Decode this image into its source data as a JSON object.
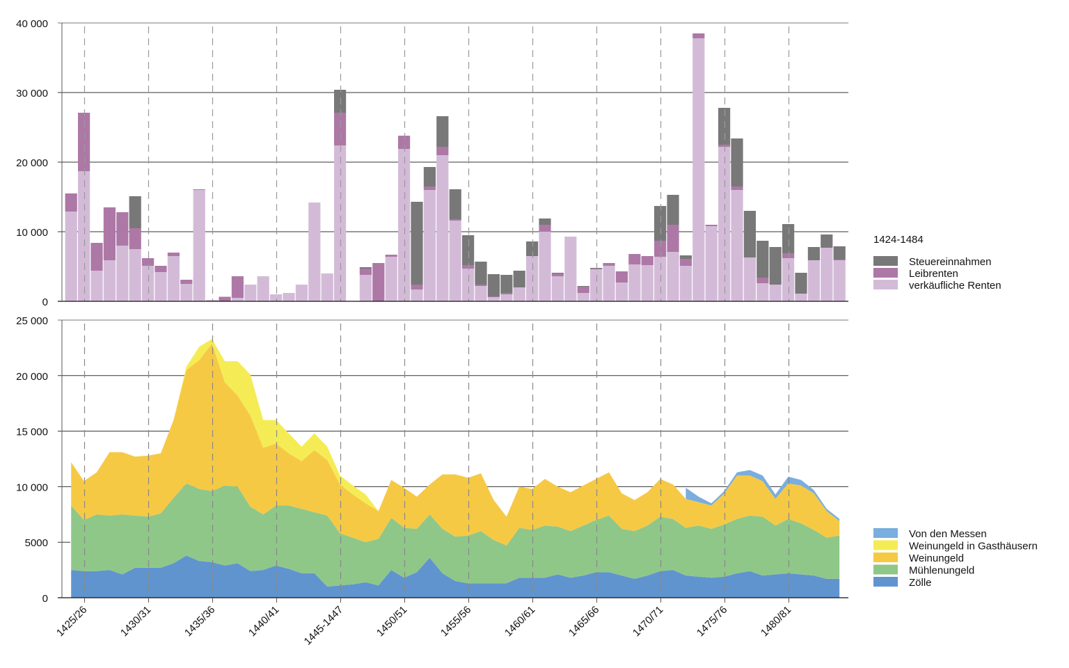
{
  "chart_data": [
    {
      "type": "bar",
      "stacked": true,
      "legend_title": "1424-1484",
      "legend_position": "right",
      "grid": true,
      "ylim": [
        0,
        40000
      ],
      "yticks": [
        0,
        10000,
        20000,
        30000,
        40000
      ],
      "ytick_labels": [
        "0",
        "10 000",
        "20 000",
        "30 000",
        "40 000"
      ],
      "x_start_year": 1424,
      "series": [
        {
          "name": "verkäufliche Renten",
          "color": "#d3bbd8",
          "values": [
            12900,
            18700,
            4400,
            5900,
            8000,
            7500,
            5100,
            4200,
            6500,
            2500,
            16000,
            200,
            50,
            500,
            2400,
            3600,
            1000,
            1200,
            2400,
            14200,
            4000,
            22400,
            0,
            3800,
            0,
            6400,
            21900,
            1700,
            16000,
            21000,
            11600,
            4700,
            2200,
            600,
            1000,
            2000,
            6500,
            10000,
            3600,
            9300,
            1200,
            4600,
            5100,
            2700,
            5300,
            5200,
            6400,
            7100,
            5100,
            37800,
            10800,
            22200,
            16000,
            6300,
            2600,
            2400,
            6200,
            1100,
            5900,
            7700,
            5900
          ]
        },
        {
          "name": "Leibrenten",
          "color": "#ad78a6",
          "values": [
            2600,
            8400,
            4000,
            7600,
            4800,
            3000,
            1100,
            900,
            500,
            600,
            100,
            0,
            600,
            3100,
            0,
            0,
            0,
            0,
            0,
            0,
            0,
            4700,
            0,
            900,
            5500,
            300,
            1900,
            700,
            500,
            1200,
            200,
            500,
            200,
            100,
            200,
            0,
            0,
            1000,
            400,
            0,
            900,
            100,
            400,
            1600,
            1500,
            1300,
            2300,
            3900,
            1000,
            700,
            200,
            300,
            500,
            0,
            800,
            0,
            700,
            0,
            0,
            0,
            100
          ]
        },
        {
          "name": "Steuereinnahmen",
          "color": "#787878",
          "values": [
            0,
            0,
            0,
            0,
            0,
            4600,
            0,
            0,
            0,
            0,
            0,
            0,
            0,
            0,
            0,
            0,
            0,
            0,
            0,
            0,
            0,
            3300,
            0,
            200,
            0,
            0,
            0,
            11900,
            2800,
            4400,
            4300,
            4300,
            3300,
            3200,
            2600,
            2400,
            2100,
            900,
            100,
            0,
            100,
            100,
            0,
            0,
            0,
            0,
            5000,
            4300,
            500,
            0,
            0,
            5300,
            6900,
            6700,
            5300,
            5400,
            4200,
            3000,
            1900,
            1900,
            1900
          ]
        }
      ]
    },
    {
      "type": "area",
      "stacked": true,
      "legend_position": "right",
      "grid": true,
      "ylim": [
        0,
        25000
      ],
      "yticks": [
        0,
        5000,
        10000,
        15000,
        20000,
        25000
      ],
      "ytick_labels": [
        "0",
        "5000",
        "10 000",
        "15 000",
        "20 000",
        "25 000"
      ],
      "xtick_labels": [
        "1425/26",
        "1430/31",
        "1435/36",
        "1440/41",
        "1445-1447",
        "1450/51",
        "1455/56",
        "1460/61",
        "1465/66",
        "1470/71",
        "1475/76",
        "1480/81"
      ],
      "series": [
        {
          "name": "Zölle",
          "color": "#6094cf",
          "values": [
            2500,
            2400,
            2400,
            2500,
            2100,
            2700,
            2700,
            2700,
            3100,
            3800,
            3300,
            3200,
            2900,
            3100,
            2400,
            2500,
            2900,
            2600,
            2200,
            2200,
            1000,
            1100,
            1200,
            1400,
            1100,
            2500,
            1800,
            2300,
            3600,
            2200,
            1500,
            1300,
            1300,
            1300,
            1300,
            1800,
            1800,
            1800,
            2100,
            1800,
            2000,
            2300,
            2300,
            2000,
            1700,
            2000,
            2400,
            2500,
            2000,
            1900,
            1800,
            1900,
            2200,
            2400,
            2000,
            2100,
            2200,
            2100,
            2000,
            1700,
            1700
          ]
        },
        {
          "name": "Mühlenungeld",
          "color": "#8fc789",
          "values": [
            5800,
            4600,
            5100,
            4900,
            5400,
            4700,
            4600,
            4900,
            5900,
            6500,
            6500,
            6400,
            7200,
            6900,
            5800,
            5000,
            5400,
            5700,
            5800,
            5500,
            6400,
            4700,
            4200,
            3600,
            4200,
            4700,
            4500,
            3900,
            3900,
            4000,
            4000,
            4300,
            4700,
            3900,
            3400,
            4500,
            4300,
            4700,
            4300,
            4200,
            4500,
            4700,
            5100,
            4200,
            4300,
            4500,
            4900,
            4600,
            4300,
            4600,
            4400,
            4700,
            4900,
            5000,
            5300,
            4400,
            4900,
            4600,
            4100,
            3700,
            3900
          ]
        },
        {
          "name": "Weinungeld",
          "color": "#f6c945",
          "values": [
            3900,
            3500,
            3800,
            5700,
            5600,
            5300,
            5500,
            5400,
            7000,
            10200,
            11600,
            13300,
            9300,
            8200,
            8200,
            6000,
            5600,
            4700,
            4300,
            5600,
            5000,
            4400,
            3900,
            3500,
            2500,
            3400,
            3600,
            2900,
            2700,
            4900,
            5600,
            5200,
            5200,
            3600,
            2600,
            3700,
            3700,
            4200,
            3600,
            3500,
            3600,
            3700,
            3900,
            3200,
            2800,
            3000,
            3400,
            3100,
            2600,
            2100,
            2100,
            2800,
            3900,
            3600,
            3200,
            2400,
            3200,
            3400,
            3300,
            2400,
            1300
          ]
        },
        {
          "name": "Weinungeld in Gasthäusern",
          "color": "#f5ec55",
          "values": [
            0,
            0,
            0,
            0,
            0,
            0,
            0,
            0,
            0,
            300,
            1200,
            400,
            1900,
            3100,
            3700,
            2500,
            2100,
            1800,
            1300,
            1500,
            1200,
            800,
            800,
            800,
            0,
            0,
            0,
            0,
            0,
            0,
            0,
            0,
            0,
            0,
            0,
            0,
            0,
            0,
            0,
            0,
            0,
            0,
            0,
            0,
            0,
            0,
            0,
            0,
            0,
            0,
            0,
            0,
            0,
            0,
            0,
            0,
            0,
            0,
            0,
            0,
            0
          ]
        },
        {
          "name": "Von den Messen",
          "color": "#79aede",
          "values": [
            0,
            0,
            0,
            0,
            0,
            0,
            0,
            0,
            0,
            0,
            0,
            0,
            0,
            0,
            0,
            0,
            0,
            0,
            0,
            0,
            0,
            0,
            0,
            0,
            0,
            0,
            0,
            0,
            0,
            0,
            0,
            0,
            0,
            0,
            0,
            0,
            0,
            0,
            0,
            0,
            0,
            0,
            0,
            0,
            0,
            0,
            0,
            0,
            1000,
            500,
            200,
            200,
            300,
            500,
            500,
            400,
            600,
            500,
            300,
            200,
            200
          ]
        }
      ]
    }
  ],
  "legend_bottom_order": [
    "Von den Messen",
    "Weinungeld in Gasthäusern",
    "Weinungeld",
    "Mühlenungeld",
    "Zölle"
  ],
  "legend_top_order": [
    "Steuereinnahmen",
    "Leibrenten",
    "verkäufliche Renten"
  ]
}
